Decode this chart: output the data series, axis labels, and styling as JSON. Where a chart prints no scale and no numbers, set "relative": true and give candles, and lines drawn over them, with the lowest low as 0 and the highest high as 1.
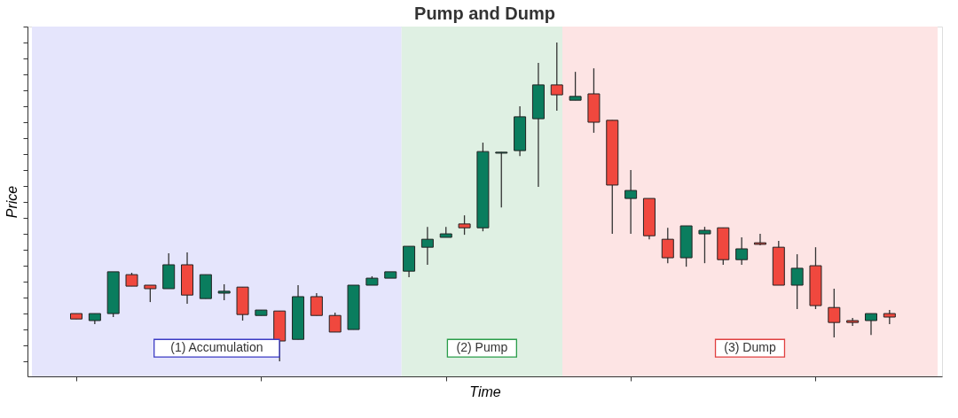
{
  "chart_data": {
    "type": "candlestick",
    "title": "Pump and Dump",
    "xlabel": "Time",
    "ylabel": "Price",
    "relative": true,
    "tick_labels": false,
    "categories": [
      null,
      null,
      null,
      null,
      null,
      null,
      null,
      null,
      null,
      null,
      null,
      null,
      null,
      null,
      null,
      null,
      null,
      null,
      null,
      null,
      null,
      null,
      null,
      null,
      null,
      null,
      null,
      null,
      null,
      null,
      null,
      null,
      null,
      null,
      null,
      null,
      null,
      null,
      null,
      null,
      null,
      null,
      null,
      null,
      null
    ],
    "ohlc": [
      [
        0.15,
        0.15,
        0.133,
        0.133
      ],
      [
        0.128,
        0.15,
        0.117,
        0.15
      ],
      [
        0.15,
        0.281,
        0.139,
        0.281
      ],
      [
        0.272,
        0.278,
        0.236,
        0.236
      ],
      [
        0.239,
        0.239,
        0.186,
        0.228
      ],
      [
        0.228,
        0.339,
        0.228,
        0.303
      ],
      [
        0.303,
        0.342,
        0.181,
        0.208
      ],
      [
        0.197,
        0.272,
        0.197,
        0.272
      ],
      [
        0.214,
        0.242,
        0.192,
        0.22
      ],
      [
        0.233,
        0.233,
        0.128,
        0.147
      ],
      [
        0.144,
        0.161,
        0.144,
        0.161
      ],
      [
        0.158,
        0.158,
        0,
        0.064
      ],
      [
        0.069,
        0.239,
        0.069,
        0.203
      ],
      [
        0.203,
        0.214,
        0.144,
        0.144
      ],
      [
        0.144,
        0.153,
        0.092,
        0.092
      ],
      [
        0.1,
        0.239,
        0.1,
        0.239
      ],
      [
        0.239,
        0.267,
        0.239,
        0.261
      ],
      [
        0.261,
        0.281,
        0.261,
        0.281
      ],
      [
        0.283,
        0.361,
        0.264,
        0.361
      ],
      [
        0.358,
        0.422,
        0.303,
        0.383
      ],
      [
        0.389,
        0.422,
        0.389,
        0.4
      ],
      [
        0.431,
        0.458,
        0.397,
        0.419
      ],
      [
        0.419,
        0.686,
        0.408,
        0.658
      ],
      [
        0.653,
        0.656,
        0.483,
        0.656
      ],
      [
        0.661,
        0.8,
        0.644,
        0.767
      ],
      [
        0.761,
        0.936,
        0.547,
        0.867
      ],
      [
        0.867,
        1,
        0.786,
        0.836
      ],
      [
        0.819,
        0.908,
        0.819,
        0.831
      ],
      [
        0.839,
        0.919,
        0.717,
        0.75
      ],
      [
        0.756,
        0.756,
        0.4,
        0.553
      ],
      [
        0.511,
        0.6,
        0.4,
        0.536
      ],
      [
        0.511,
        0.511,
        0.383,
        0.394
      ],
      [
        0.383,
        0.419,
        0.308,
        0.325
      ],
      [
        0.325,
        0.425,
        0.297,
        0.425
      ],
      [
        0.4,
        0.422,
        0.308,
        0.411
      ],
      [
        0.419,
        0.419,
        0.303,
        0.319
      ],
      [
        0.319,
        0.389,
        0.303,
        0.353
      ],
      [
        0.372,
        0.4,
        0.364,
        0.367
      ],
      [
        0.358,
        0.378,
        0.239,
        0.239
      ],
      [
        0.239,
        0.336,
        0.164,
        0.292
      ],
      [
        0.3,
        0.358,
        0.164,
        0.175
      ],
      [
        0.169,
        0.228,
        0.075,
        0.122
      ],
      [
        0.128,
        0.136,
        0.111,
        0.122
      ],
      [
        0.128,
        0.15,
        0.083,
        0.15
      ],
      [
        0.15,
        0.161,
        0.117,
        0.139
      ]
    ],
    "colors": [
      "#f0483e",
      "#0a7d5e",
      "#0a7d5e",
      "#f0483e",
      "#f0483e",
      "#0a7d5e",
      "#f0483e",
      "#0a7d5e",
      "#0a7d5e",
      "#f0483e",
      "#0a7d5e",
      "#f0483e",
      "#0a7d5e",
      "#f0483e",
      "#f0483e",
      "#0a7d5e",
      "#0a7d5e",
      "#0a7d5e",
      "#0a7d5e",
      "#0a7d5e",
      "#0a7d5e",
      "#f0483e",
      "#0a7d5e",
      "#0a7d5e",
      "#0a7d5e",
      "#0a7d5e",
      "#f0483e",
      "#0a7d5e",
      "#f0483e",
      "#f0483e",
      "#0a7d5e",
      "#f0483e",
      "#f0483e",
      "#0a7d5e",
      "#0a7d5e",
      "#f0483e",
      "#0a7d5e",
      "#f0483e",
      "#f0483e",
      "#0a7d5e",
      "#f0483e",
      "#f0483e",
      "#f0483e",
      "#0a7d5e",
      "#f0483e"
    ],
    "annotations": [
      "(1) Accumulation",
      "(2) Pump",
      "(3) Dump"
    ]
  }
}
